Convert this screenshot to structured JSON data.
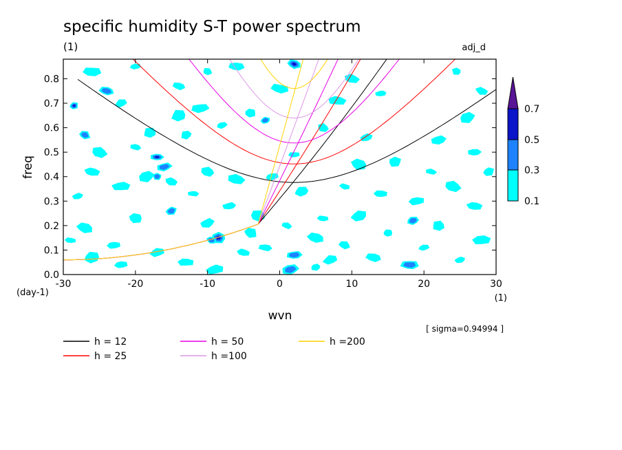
{
  "chart_data": {
    "type": "heatmap",
    "title": "specific humidity S-T power spectrum",
    "subtitle_left": "(1)",
    "subtitle_right": "adj_d",
    "xlabel": "wvn",
    "ylabel": "freq",
    "x_unit": "(1)",
    "y_unit": "(day-1)",
    "xlim": [
      -30,
      30
    ],
    "ylim": [
      0,
      0.88
    ],
    "xticks": [
      "-30",
      "-20",
      "-10",
      "0",
      "10",
      "20",
      "30"
    ],
    "yticks": [
      "0.0",
      "0.1",
      "0.2",
      "0.3",
      "0.4",
      "0.5",
      "0.6",
      "0.7",
      "0.8"
    ],
    "sigma_label": "[ sigma=0.94994 ]",
    "colorbar": {
      "levels": [
        "0.1",
        "0.3",
        "0.5",
        "0.7"
      ],
      "colors": [
        "#00ffff",
        "#1e82ff",
        "#0a14c8",
        "#5a1496"
      ]
    },
    "dispersion_curves": [
      {
        "name": "h = 12",
        "h": 12,
        "color": "#000000"
      },
      {
        "name": "h = 25",
        "h": 25,
        "color": "#ff0000"
      },
      {
        "name": "h = 50",
        "h": 50,
        "color": "#e600e6"
      },
      {
        "name": "h =100",
        "h": 100,
        "color": "#dc96e6"
      },
      {
        "name": "h =200",
        "h": 200,
        "color": "#ffd200"
      }
    ],
    "contour_patches": [
      {
        "x": -28.5,
        "y": 0.69,
        "level": 3
      },
      {
        "x": -27.0,
        "y": 0.57,
        "level": 2
      },
      {
        "x": -24.0,
        "y": 0.75,
        "level": 2
      },
      {
        "x": -26.0,
        "y": 0.83,
        "level": 1
      },
      {
        "x": -20.0,
        "y": 0.85,
        "level": 1
      },
      {
        "x": -22.0,
        "y": 0.7,
        "level": 1
      },
      {
        "x": -18.0,
        "y": 0.58,
        "level": 1
      },
      {
        "x": -25.0,
        "y": 0.5,
        "level": 1
      },
      {
        "x": -20.0,
        "y": 0.52,
        "level": 1
      },
      {
        "x": -17.0,
        "y": 0.48,
        "level": 3
      },
      {
        "x": -16.0,
        "y": 0.44,
        "level": 2
      },
      {
        "x": -18.5,
        "y": 0.4,
        "level": 1
      },
      {
        "x": -17.0,
        "y": 0.4,
        "level": 2
      },
      {
        "x": -15.0,
        "y": 0.38,
        "level": 1
      },
      {
        "x": -26.0,
        "y": 0.42,
        "level": 1
      },
      {
        "x": -22.0,
        "y": 0.36,
        "level": 1
      },
      {
        "x": -28.0,
        "y": 0.32,
        "level": 1
      },
      {
        "x": -15.0,
        "y": 0.26,
        "level": 2
      },
      {
        "x": -20.0,
        "y": 0.23,
        "level": 1
      },
      {
        "x": -27.0,
        "y": 0.19,
        "level": 1
      },
      {
        "x": -29.0,
        "y": 0.14,
        "level": 1
      },
      {
        "x": -23.0,
        "y": 0.12,
        "level": 1
      },
      {
        "x": -17.0,
        "y": 0.09,
        "level": 1
      },
      {
        "x": -26.0,
        "y": 0.07,
        "level": 1
      },
      {
        "x": -10.0,
        "y": 0.83,
        "level": 1
      },
      {
        "x": -14.0,
        "y": 0.77,
        "level": 1
      },
      {
        "x": -6.0,
        "y": 0.85,
        "level": 1
      },
      {
        "x": -11.0,
        "y": 0.68,
        "level": 1
      },
      {
        "x": -8.0,
        "y": 0.61,
        "level": 1
      },
      {
        "x": -13.0,
        "y": 0.57,
        "level": 1
      },
      {
        "x": -10.0,
        "y": 0.42,
        "level": 1
      },
      {
        "x": -6.0,
        "y": 0.39,
        "level": 1
      },
      {
        "x": -12.0,
        "y": 0.33,
        "level": 1
      },
      {
        "x": -7.0,
        "y": 0.28,
        "level": 1
      },
      {
        "x": -10.0,
        "y": 0.21,
        "level": 1
      },
      {
        "x": -8.5,
        "y": 0.15,
        "level": 3
      },
      {
        "x": -9.5,
        "y": 0.14,
        "level": 2
      },
      {
        "x": -5.0,
        "y": 0.09,
        "level": 1
      },
      {
        "x": -13.0,
        "y": 0.05,
        "level": 1
      },
      {
        "x": -9.0,
        "y": 0.02,
        "level": 1
      },
      {
        "x": -2.0,
        "y": 0.63,
        "level": 2
      },
      {
        "x": -4.0,
        "y": 0.66,
        "level": 1
      },
      {
        "x": 2.0,
        "y": 0.86,
        "level": 3
      },
      {
        "x": 0.0,
        "y": 0.76,
        "level": 1
      },
      {
        "x": 2.0,
        "y": 0.49,
        "level": 1
      },
      {
        "x": -1.0,
        "y": 0.4,
        "level": 1
      },
      {
        "x": 3.0,
        "y": 0.34,
        "level": 1
      },
      {
        "x": -3.0,
        "y": 0.24,
        "level": 1
      },
      {
        "x": 1.0,
        "y": 0.2,
        "level": 1
      },
      {
        "x": -2.0,
        "y": 0.11,
        "level": 1
      },
      {
        "x": 2.0,
        "y": 0.08,
        "level": 2
      },
      {
        "x": 1.5,
        "y": 0.02,
        "level": 2
      },
      {
        "x": 5.0,
        "y": 0.03,
        "level": 1
      },
      {
        "x": 6.0,
        "y": 0.6,
        "level": 1
      },
      {
        "x": 10.0,
        "y": 0.8,
        "level": 1
      },
      {
        "x": 8.0,
        "y": 0.71,
        "level": 1
      },
      {
        "x": 14.0,
        "y": 0.74,
        "level": 1
      },
      {
        "x": 12.0,
        "y": 0.56,
        "level": 1
      },
      {
        "x": 16.0,
        "y": 0.46,
        "level": 1
      },
      {
        "x": 11.0,
        "y": 0.45,
        "level": 1
      },
      {
        "x": 9.0,
        "y": 0.36,
        "level": 1
      },
      {
        "x": 14.0,
        "y": 0.33,
        "level": 1
      },
      {
        "x": 19.0,
        "y": 0.3,
        "level": 1
      },
      {
        "x": 11.0,
        "y": 0.24,
        "level": 1
      },
      {
        "x": 15.0,
        "y": 0.17,
        "level": 1
      },
      {
        "x": 9.0,
        "y": 0.12,
        "level": 1
      },
      {
        "x": 13.0,
        "y": 0.07,
        "level": 1
      },
      {
        "x": 18.0,
        "y": 0.04,
        "level": 2
      },
      {
        "x": 20.0,
        "y": 0.11,
        "level": 1
      },
      {
        "x": 18.5,
        "y": 0.22,
        "level": 2
      },
      {
        "x": 22.0,
        "y": 0.2,
        "level": 1
      },
      {
        "x": 24.0,
        "y": 0.36,
        "level": 1
      },
      {
        "x": 21.0,
        "y": 0.42,
        "level": 1
      },
      {
        "x": 27.0,
        "y": 0.5,
        "level": 1
      },
      {
        "x": 22.0,
        "y": 0.55,
        "level": 1
      },
      {
        "x": 26.0,
        "y": 0.64,
        "level": 1
      },
      {
        "x": 24.5,
        "y": 0.83,
        "level": 1
      },
      {
        "x": 28.0,
        "y": 0.75,
        "level": 1
      },
      {
        "x": 27.0,
        "y": 0.28,
        "level": 1
      },
      {
        "x": 28.0,
        "y": 0.14,
        "level": 1
      },
      {
        "x": 25.0,
        "y": 0.06,
        "level": 1
      },
      {
        "x": 29.0,
        "y": 0.42,
        "level": 1
      },
      {
        "x": -4.0,
        "y": 0.17,
        "level": 1
      },
      {
        "x": 5.0,
        "y": 0.15,
        "level": 1
      },
      {
        "x": 6.0,
        "y": 0.23,
        "level": 1
      },
      {
        "x": -22.0,
        "y": 0.04,
        "level": 1
      },
      {
        "x": 7.0,
        "y": 0.06,
        "level": 1
      },
      {
        "x": -14.0,
        "y": 0.65,
        "level": 1
      }
    ]
  }
}
